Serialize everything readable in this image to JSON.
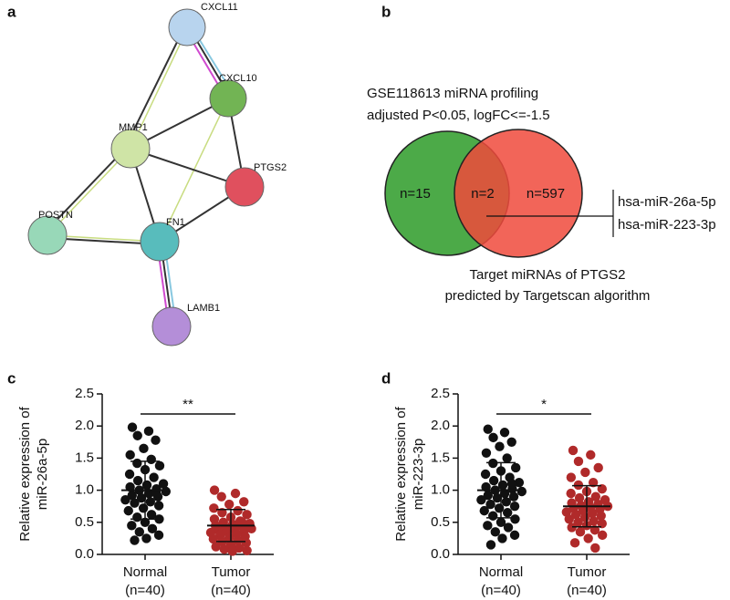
{
  "panel_labels": [
    "a",
    "b",
    "c",
    "d"
  ],
  "network": {
    "nodes": [
      {
        "label": "CXCL11",
        "color": "#b8d4ee"
      },
      {
        "label": "CXCL10",
        "color": "#72b454"
      },
      {
        "label": "MMP1",
        "color": "#cfe4a6"
      },
      {
        "label": "PTGS2",
        "color": "#e0505e"
      },
      {
        "label": "POSTN",
        "color": "#98d8b8"
      },
      {
        "label": "FN1",
        "color": "#58bcbc"
      },
      {
        "label": "LAMB1",
        "color": "#b48ed8"
      }
    ]
  },
  "venn": {
    "title": [
      "GSE118613 miRNA profiling",
      "adjusted P<0.05, logFC<=-1.5"
    ],
    "left": "n=15",
    "overlap": "n=2",
    "right": "n=597",
    "overlap_items": [
      "hsa-miR-26a-5p",
      "hsa-miR-223-3p"
    ],
    "caption": [
      "Target miRNAs of PTGS2",
      "predicted by Targetscan algorithm"
    ],
    "left_color": "#4caa48",
    "right_color": "#f04a3c"
  },
  "chart_data": [
    {
      "type": "dot",
      "ylabel": [
        "Relative expression of",
        "miR-26a-5p"
      ],
      "ylim": [
        0,
        2.5
      ],
      "yticks": [
        {
          "value": 0,
          "label": "0.0"
        },
        {
          "value": 0.5,
          "label": "0.5"
        },
        {
          "value": 1,
          "label": "1.0"
        },
        {
          "value": 1.5,
          "label": "1.5"
        },
        {
          "value": 2,
          "label": "2.0"
        },
        {
          "value": 2.5,
          "label": "2.5"
        }
      ],
      "significance": "**",
      "groups": [
        {
          "category": "Normal",
          "sublabel": "(n=40)",
          "color": "#111111",
          "mean": 1.0,
          "sd": 0.45,
          "values": [
            1.98,
            1.92,
            1.85,
            1.78,
            1.65,
            1.55,
            1.48,
            1.42,
            1.38,
            1.32,
            1.25,
            1.2,
            1.15,
            1.1,
            1.08,
            1.05,
            1.02,
            1.0,
            0.98,
            0.95,
            0.92,
            0.9,
            0.88,
            0.85,
            0.82,
            0.8,
            0.76,
            0.72,
            0.68,
            0.62,
            0.58,
            0.55,
            0.5,
            0.45,
            0.4,
            0.35,
            0.3,
            0.25,
            0.22,
            0.95
          ]
        },
        {
          "category": "Tumor",
          "sublabel": "(n=40)",
          "color": "#b02a2a",
          "mean": 0.45,
          "sd": 0.25,
          "values": [
            1.0,
            0.95,
            0.9,
            0.82,
            0.78,
            0.72,
            0.68,
            0.65,
            0.62,
            0.58,
            0.55,
            0.52,
            0.5,
            0.48,
            0.47,
            0.45,
            0.44,
            0.42,
            0.4,
            0.4,
            0.38,
            0.37,
            0.35,
            0.34,
            0.32,
            0.3,
            0.28,
            0.26,
            0.24,
            0.22,
            0.2,
            0.18,
            0.15,
            0.12,
            0.1,
            0.08,
            0.06,
            0.05,
            0.44,
            0.5
          ]
        }
      ]
    },
    {
      "type": "dot",
      "ylabel": [
        "Relative expression of",
        "miR-223-3p"
      ],
      "ylim": [
        0,
        2.5
      ],
      "yticks": [
        {
          "value": 0,
          "label": "0.0"
        },
        {
          "value": 0.5,
          "label": "0.5"
        },
        {
          "value": 1,
          "label": "1.0"
        },
        {
          "value": 1.5,
          "label": "1.5"
        },
        {
          "value": 2,
          "label": "2.0"
        },
        {
          "value": 2.5,
          "label": "2.5"
        }
      ],
      "significance": "*",
      "groups": [
        {
          "category": "Normal",
          "sublabel": "(n=40)",
          "color": "#111111",
          "mean": 1.0,
          "sd": 0.43,
          "values": [
            1.95,
            1.9,
            1.82,
            1.75,
            1.68,
            1.58,
            1.5,
            1.42,
            1.35,
            1.3,
            1.25,
            1.2,
            1.15,
            1.12,
            1.08,
            1.05,
            1.02,
            1.0,
            0.98,
            0.95,
            0.92,
            0.9,
            0.88,
            0.85,
            0.82,
            0.78,
            0.75,
            0.72,
            0.68,
            0.65,
            0.6,
            0.55,
            0.5,
            0.45,
            0.42,
            0.35,
            0.3,
            0.25,
            0.15,
            1.1
          ]
        },
        {
          "category": "Tumor",
          "sublabel": "(n=40)",
          "color": "#b02a2a",
          "mean": 0.75,
          "sd": 0.32,
          "values": [
            1.62,
            1.55,
            1.45,
            1.35,
            1.28,
            1.2,
            1.12,
            1.08,
            1.02,
            0.98,
            0.95,
            0.9,
            0.88,
            0.85,
            0.82,
            0.8,
            0.78,
            0.76,
            0.75,
            0.73,
            0.72,
            0.7,
            0.68,
            0.66,
            0.64,
            0.62,
            0.6,
            0.58,
            0.55,
            0.52,
            0.5,
            0.48,
            0.45,
            0.42,
            0.38,
            0.35,
            0.3,
            0.25,
            0.18,
            0.1
          ]
        }
      ]
    }
  ]
}
